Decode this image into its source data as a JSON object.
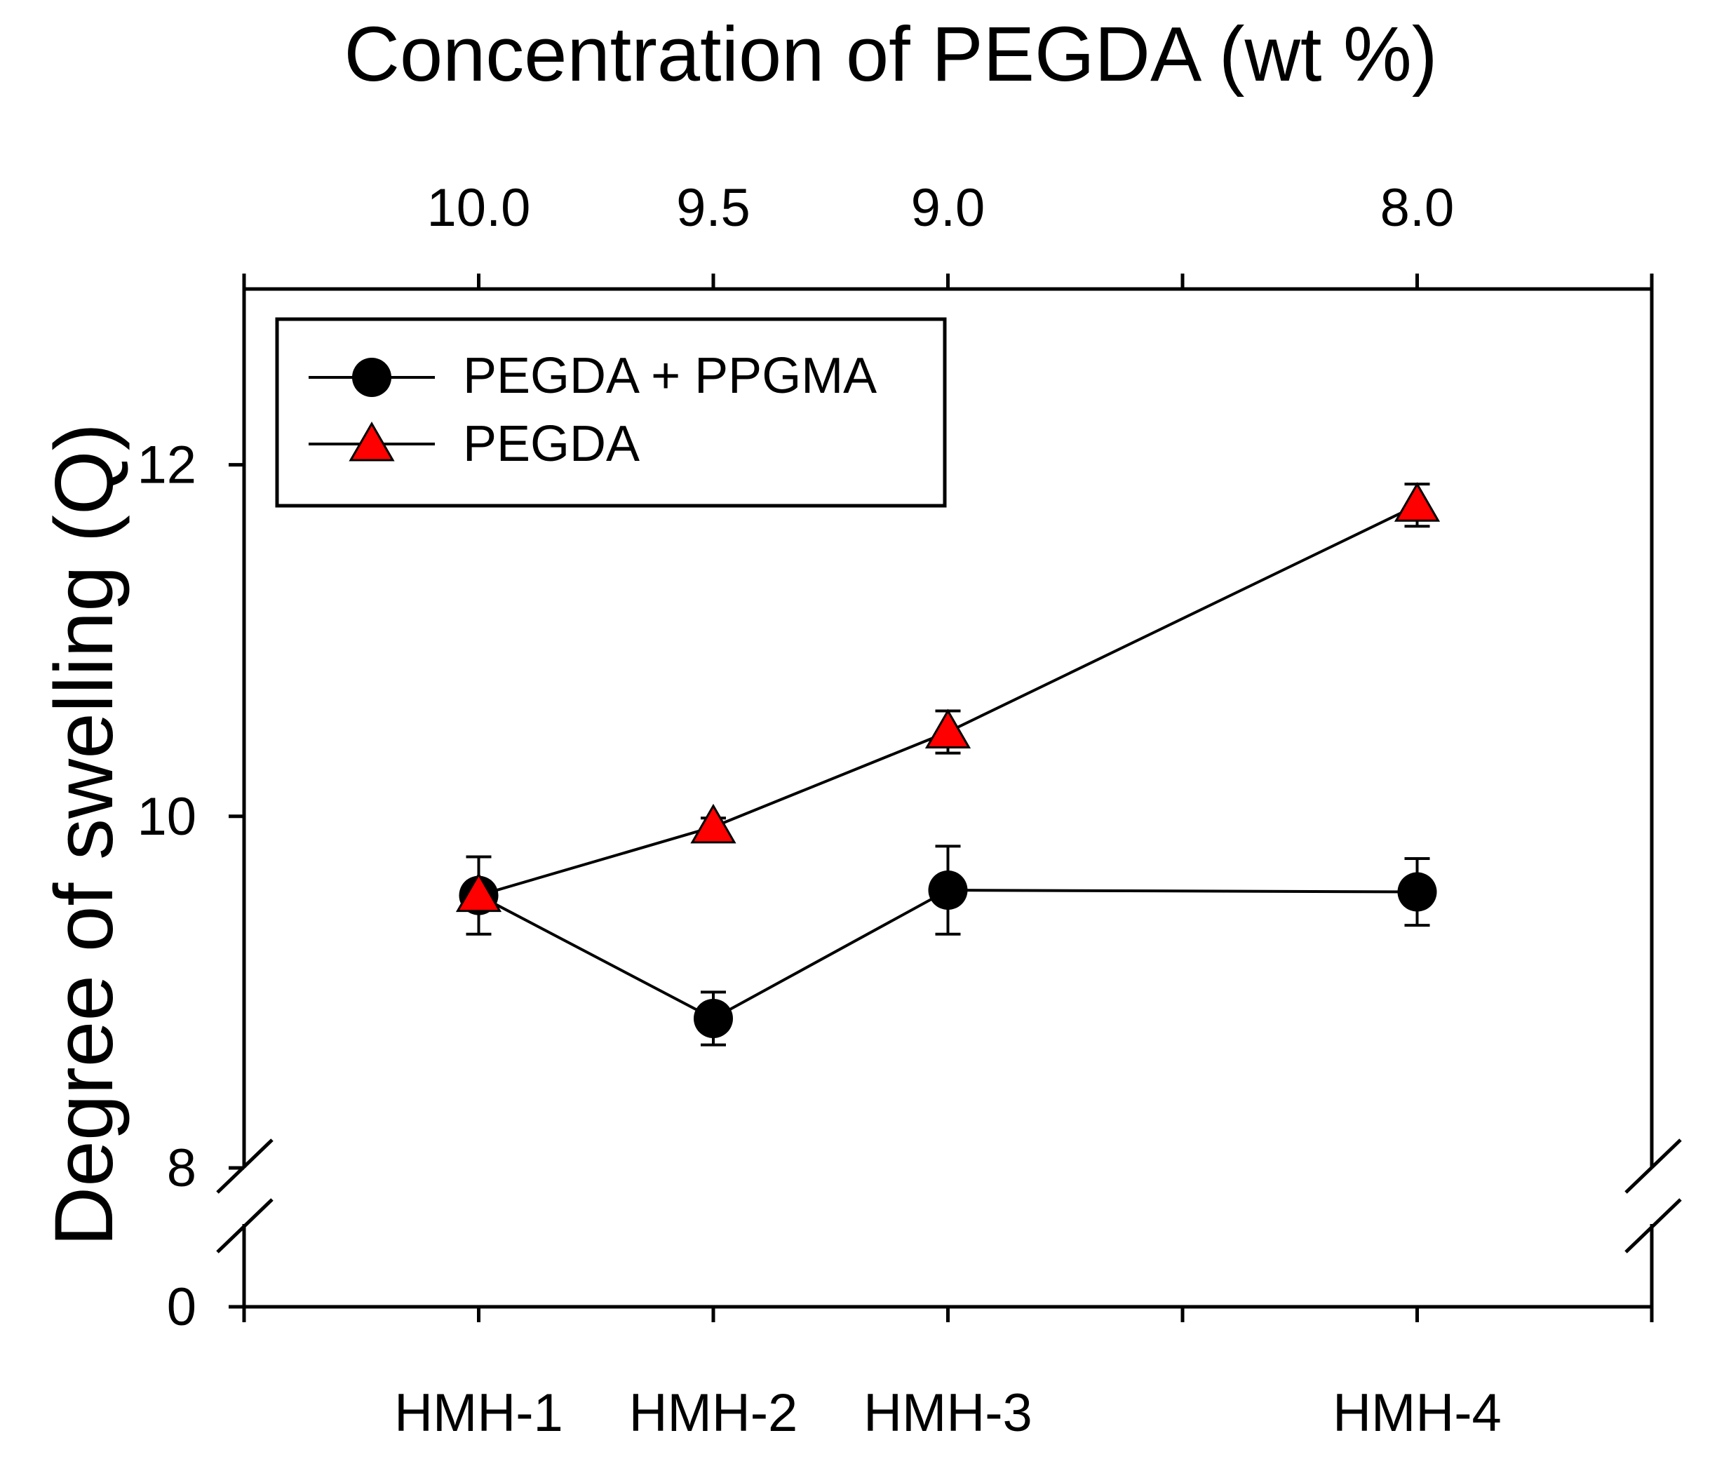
{
  "chart_data": {
    "type": "line",
    "top_title": "Concentration of PEGDA (wt %)",
    "ylabel": "Degree of swelling (Q)",
    "categories": [
      "HMH-1",
      "HMH-2",
      "HMH-3",
      "HMH-4"
    ],
    "x_positions": [
      1,
      2,
      3,
      5
    ],
    "x_range": [
      0,
      6
    ],
    "top_tick_labels": [
      "10.0",
      "9.5",
      "9.0",
      "8.0"
    ],
    "y_axis": {
      "broken": true,
      "lower_range": [
        0,
        0.5
      ],
      "upper_range": [
        8,
        13
      ],
      "tick_values": [
        0,
        8,
        10,
        12
      ],
      "tick_labels": [
        "0",
        "8",
        "10",
        "12"
      ]
    },
    "series": [
      {
        "name": "PEGDA + PPGMA",
        "marker": "circle",
        "color": "#000000",
        "values": [
          9.55,
          8.85,
          9.58,
          9.57
        ],
        "errors": [
          0.22,
          0.15,
          0.25,
          0.19
        ]
      },
      {
        "name": "PEGDA",
        "marker": "triangle",
        "color": "#ff0000",
        "values": [
          9.55,
          9.94,
          10.48,
          11.77
        ],
        "errors": [
          0.08,
          0.05,
          0.12,
          0.12
        ]
      }
    ],
    "legend": {
      "position": "top-left"
    }
  }
}
